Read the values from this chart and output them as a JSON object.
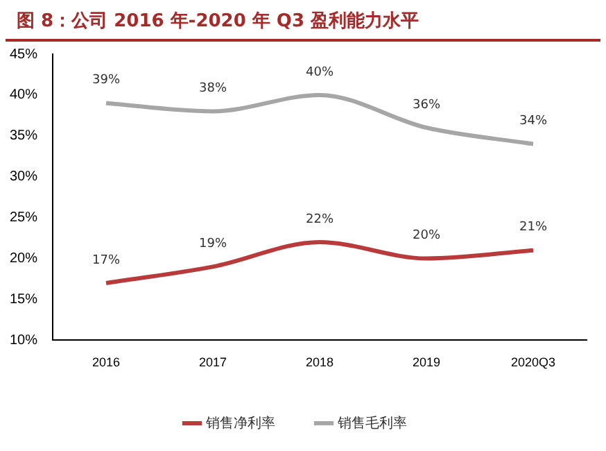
{
  "chart_data": {
    "type": "line",
    "title": "图 8：公司 2016 年-2020 年 Q3 盈利能力水平",
    "categories": [
      "2016",
      "2017",
      "2018",
      "2019",
      "2020Q3"
    ],
    "series": [
      {
        "name": "销售净利率",
        "color": "#b83a3a",
        "values": [
          17,
          19,
          22,
          20,
          21
        ],
        "value_labels": [
          "17%",
          "19%",
          "22%",
          "20%",
          "21%"
        ]
      },
      {
        "name": "销售毛利率",
        "color": "#a6a6a6",
        "values": [
          39,
          38,
          40,
          36,
          34
        ],
        "value_labels": [
          "39%",
          "38%",
          "40%",
          "36%",
          "34%"
        ]
      }
    ],
    "ylim": [
      10,
      45
    ],
    "yticks": [
      {
        "value": 10,
        "label": "10%"
      },
      {
        "value": 15,
        "label": "15%"
      },
      {
        "value": 20,
        "label": "20%"
      },
      {
        "value": 25,
        "label": "25%"
      },
      {
        "value": 30,
        "label": "30%"
      },
      {
        "value": 35,
        "label": "35%"
      },
      {
        "value": 40,
        "label": "40%"
      },
      {
        "value": 45,
        "label": "45%"
      }
    ],
    "grid": false,
    "legend": "bottom",
    "marker": "none",
    "line_style": "solid"
  }
}
